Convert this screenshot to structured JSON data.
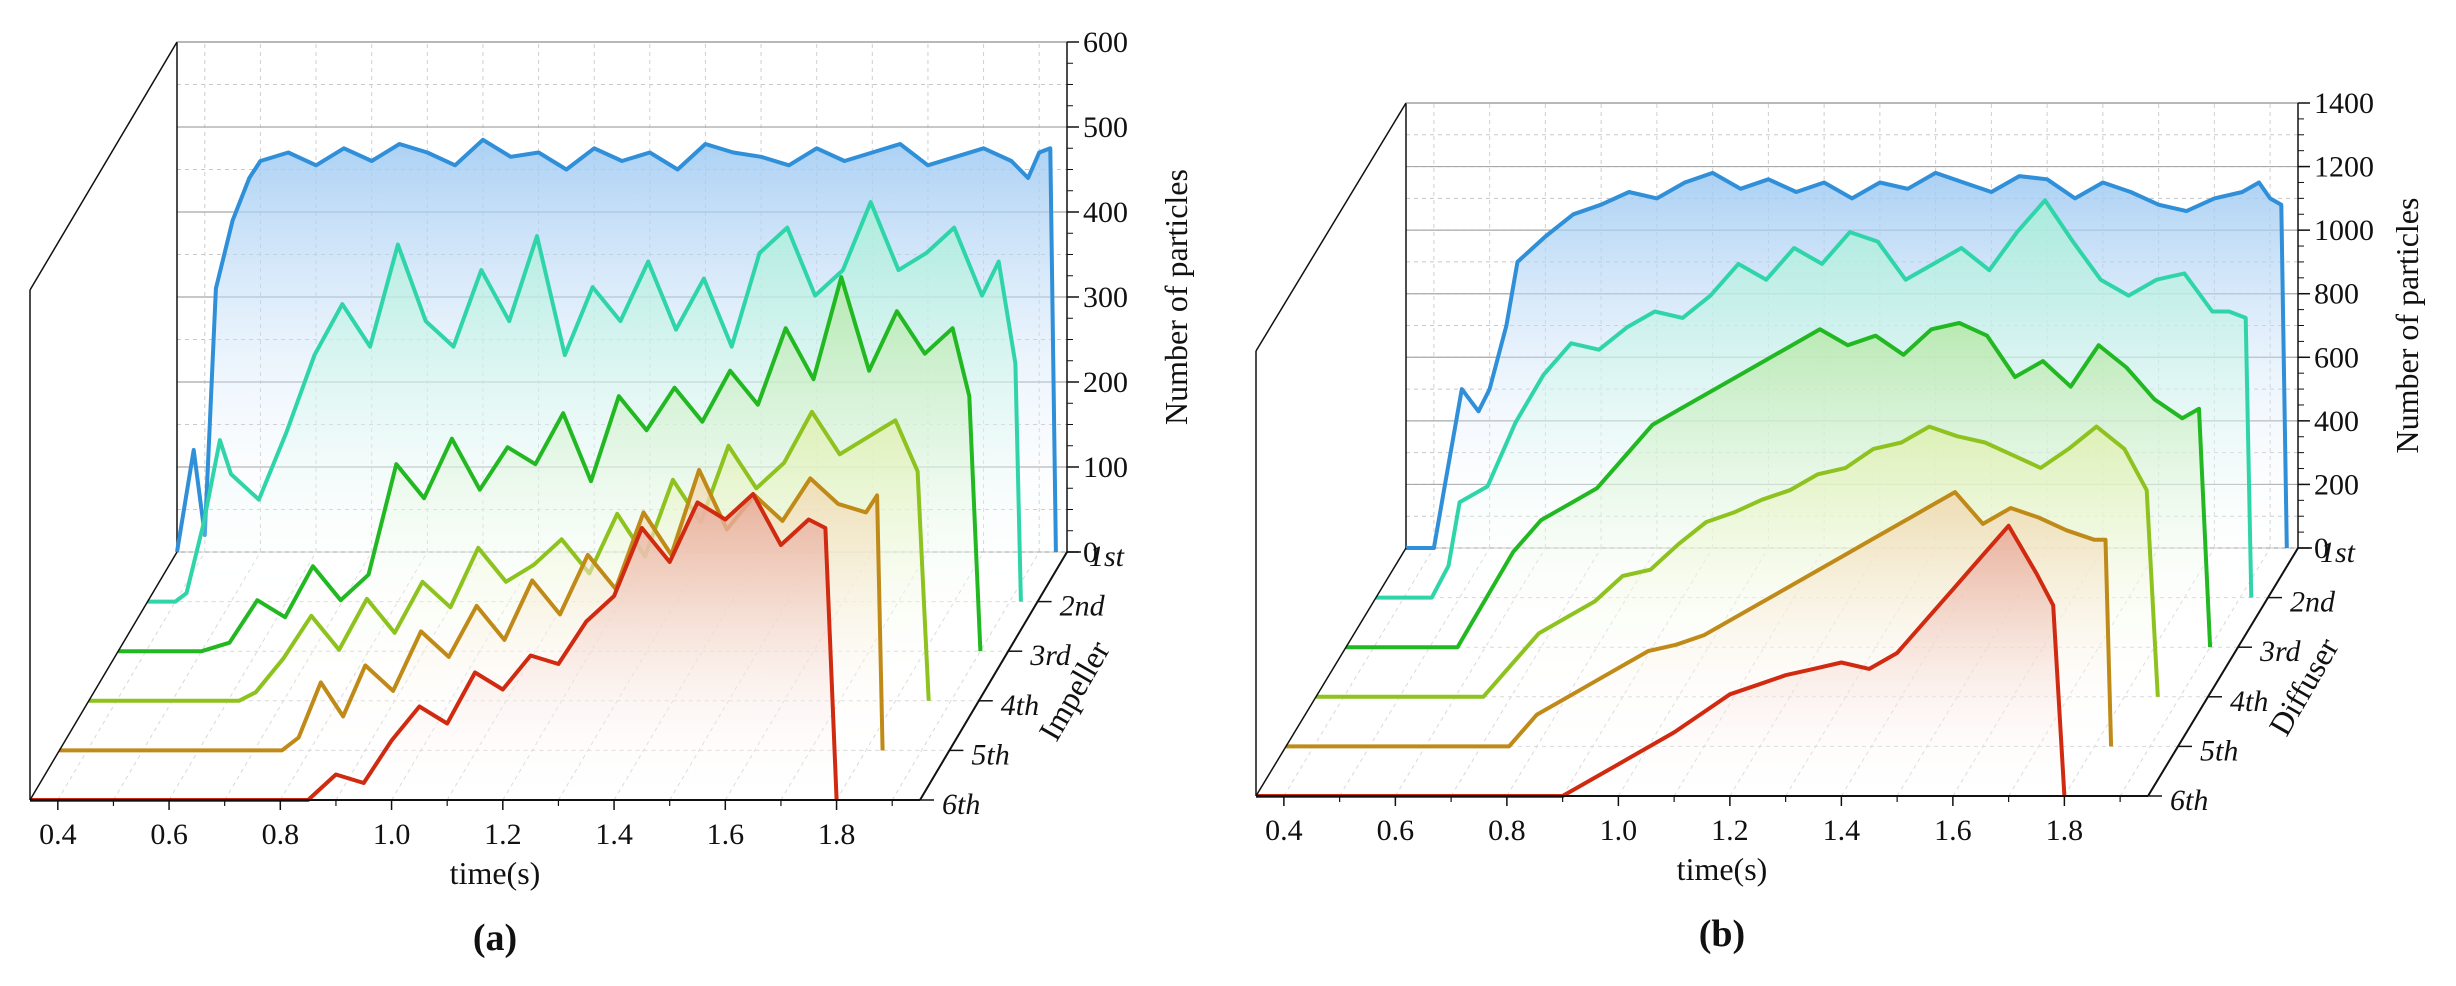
{
  "figure": {
    "panels": [
      {
        "id": "a",
        "caption": "(a)"
      },
      {
        "id": "b",
        "caption": "(b)"
      }
    ]
  },
  "chart_data": [
    {
      "type": "line",
      "style": "3d-waterfall",
      "panel": "(a)",
      "xlabel": "time(s)",
      "ylabel": "Number of particles",
      "depth_label": "Impeller",
      "xlim": [
        0.35,
        1.95
      ],
      "ylim": [
        0,
        600
      ],
      "xticks": [
        0.4,
        0.6,
        0.8,
        1.0,
        1.2,
        1.4,
        1.6,
        1.8
      ],
      "xtick_labels": [
        "0.4",
        "0.6",
        "0.8",
        "1.0",
        "1.2",
        "1.4",
        "1.6",
        "1.8"
      ],
      "yticks": [
        0,
        100,
        200,
        300,
        400,
        500,
        600
      ],
      "ytick_labels": [
        "0",
        "100",
        "200",
        "300",
        "400",
        "500",
        "600"
      ],
      "depth_categories": [
        "1st",
        "2nd",
        "3rd",
        "4th",
        "5th",
        "6th"
      ],
      "series": [
        {
          "name": "1st",
          "color": "#2f8fd8",
          "fill": "#9cc8f2",
          "x": [
            0.35,
            0.38,
            0.4,
            0.42,
            0.45,
            0.48,
            0.5,
            0.55,
            0.6,
            0.65,
            0.7,
            0.75,
            0.8,
            0.85,
            0.9,
            0.95,
            1.0,
            1.05,
            1.1,
            1.15,
            1.2,
            1.25,
            1.3,
            1.35,
            1.4,
            1.45,
            1.5,
            1.55,
            1.6,
            1.65,
            1.7,
            1.75,
            1.8,
            1.85,
            1.88,
            1.9,
            1.92,
            1.93
          ],
          "values": [
            0,
            120,
            20,
            310,
            390,
            440,
            460,
            470,
            455,
            475,
            460,
            480,
            470,
            455,
            485,
            465,
            470,
            450,
            475,
            460,
            470,
            450,
            480,
            470,
            465,
            455,
            475,
            460,
            470,
            480,
            455,
            465,
            475,
            460,
            440,
            470,
            475,
            0
          ]
        },
        {
          "name": "2nd",
          "color": "#2fd5a8",
          "fill": "#a8efd8",
          "x": [
            0.35,
            0.4,
            0.42,
            0.45,
            0.48,
            0.5,
            0.55,
            0.6,
            0.65,
            0.7,
            0.75,
            0.8,
            0.85,
            0.9,
            0.95,
            1.0,
            1.05,
            1.1,
            1.15,
            1.2,
            1.25,
            1.3,
            1.35,
            1.4,
            1.45,
            1.5,
            1.55,
            1.6,
            1.65,
            1.7,
            1.75,
            1.8,
            1.85,
            1.88,
            1.91,
            1.92
          ],
          "values": [
            0,
            0,
            10,
            90,
            190,
            150,
            120,
            200,
            290,
            350,
            300,
            420,
            330,
            300,
            390,
            330,
            430,
            290,
            370,
            330,
            400,
            320,
            380,
            300,
            410,
            440,
            360,
            390,
            470,
            390,
            410,
            440,
            360,
            400,
            280,
            0
          ]
        },
        {
          "name": "3rd",
          "color": "#22b822",
          "fill": "#b6e8a8",
          "x": [
            0.35,
            0.5,
            0.55,
            0.6,
            0.65,
            0.7,
            0.75,
            0.8,
            0.85,
            0.9,
            0.95,
            1.0,
            1.05,
            1.1,
            1.15,
            1.2,
            1.25,
            1.3,
            1.35,
            1.4,
            1.45,
            1.5,
            1.55,
            1.6,
            1.65,
            1.7,
            1.75,
            1.8,
            1.85,
            1.88,
            1.9
          ],
          "values": [
            0,
            0,
            10,
            60,
            40,
            100,
            60,
            90,
            220,
            180,
            250,
            190,
            240,
            220,
            280,
            200,
            300,
            260,
            310,
            270,
            330,
            290,
            380,
            320,
            440,
            330,
            400,
            350,
            380,
            300,
            0
          ]
        },
        {
          "name": "4th",
          "color": "#8ec21f",
          "fill": "#dff0b0",
          "x": [
            0.35,
            0.62,
            0.65,
            0.7,
            0.75,
            0.8,
            0.85,
            0.9,
            0.95,
            1.0,
            1.05,
            1.1,
            1.15,
            1.2,
            1.25,
            1.3,
            1.35,
            1.4,
            1.45,
            1.5,
            1.55,
            1.6,
            1.65,
            1.7,
            1.75,
            1.8,
            1.84,
            1.86
          ],
          "values": [
            0,
            0,
            10,
            50,
            100,
            60,
            120,
            80,
            140,
            110,
            180,
            140,
            160,
            190,
            150,
            220,
            170,
            260,
            210,
            300,
            250,
            280,
            340,
            290,
            310,
            330,
            270,
            0
          ]
        },
        {
          "name": "5th",
          "color": "#c08a18",
          "fill": "#f0d8b0",
          "x": [
            0.35,
            0.75,
            0.78,
            0.82,
            0.86,
            0.9,
            0.95,
            1.0,
            1.05,
            1.1,
            1.15,
            1.2,
            1.25,
            1.3,
            1.35,
            1.4,
            1.45,
            1.5,
            1.55,
            1.6,
            1.65,
            1.7,
            1.75,
            1.8,
            1.82,
            1.83
          ],
          "values": [
            0,
            0,
            15,
            80,
            40,
            100,
            70,
            140,
            110,
            170,
            130,
            200,
            160,
            230,
            190,
            280,
            230,
            330,
            260,
            300,
            270,
            320,
            290,
            280,
            300,
            0
          ]
        },
        {
          "name": "6th",
          "color": "#d02a10",
          "fill": "#e8a898",
          "x": [
            0.35,
            0.85,
            0.9,
            0.95,
            1.0,
            1.05,
            1.1,
            1.15,
            1.2,
            1.25,
            1.3,
            1.35,
            1.4,
            1.45,
            1.5,
            1.55,
            1.6,
            1.65,
            1.7,
            1.75,
            1.78,
            1.8
          ],
          "values": [
            0,
            0,
            30,
            20,
            70,
            110,
            90,
            150,
            130,
            170,
            160,
            210,
            240,
            320,
            280,
            350,
            330,
            360,
            300,
            330,
            320,
            0
          ]
        }
      ]
    },
    {
      "type": "line",
      "style": "3d-waterfall",
      "panel": "(b)",
      "xlabel": "time(s)",
      "ylabel": "Number of particles",
      "depth_label": "Diffuser",
      "xlim": [
        0.35,
        1.95
      ],
      "ylim": [
        0,
        1400
      ],
      "xticks": [
        0.4,
        0.6,
        0.8,
        1.0,
        1.2,
        1.4,
        1.6,
        1.8
      ],
      "xtick_labels": [
        "0.4",
        "0.6",
        "0.8",
        "1.0",
        "1.2",
        "1.4",
        "1.6",
        "1.8"
      ],
      "yticks": [
        0,
        200,
        400,
        600,
        800,
        1000,
        1200,
        1400
      ],
      "ytick_labels": [
        "0",
        "200",
        "400",
        "600",
        "800",
        "1000",
        "1200",
        "1400"
      ],
      "depth_categories": [
        "1st",
        "2nd",
        "3rd",
        "4th",
        "5th",
        "6th"
      ],
      "series": [
        {
          "name": "1st",
          "color": "#2f8fd8",
          "fill": "#9cc8f2",
          "x": [
            0.35,
            0.4,
            0.42,
            0.45,
            0.48,
            0.5,
            0.53,
            0.55,
            0.6,
            0.65,
            0.7,
            0.75,
            0.8,
            0.85,
            0.9,
            0.95,
            1.0,
            1.05,
            1.1,
            1.15,
            1.2,
            1.25,
            1.3,
            1.35,
            1.4,
            1.45,
            1.5,
            1.55,
            1.6,
            1.65,
            1.7,
            1.75,
            1.8,
            1.85,
            1.88,
            1.9,
            1.92,
            1.93
          ],
          "values": [
            0,
            0,
            200,
            500,
            430,
            500,
            700,
            900,
            980,
            1050,
            1080,
            1120,
            1100,
            1150,
            1180,
            1130,
            1160,
            1120,
            1150,
            1100,
            1150,
            1130,
            1180,
            1150,
            1120,
            1170,
            1160,
            1100,
            1150,
            1120,
            1080,
            1060,
            1100,
            1120,
            1150,
            1100,
            1080,
            0
          ]
        },
        {
          "name": "2nd",
          "color": "#2fd5a8",
          "fill": "#a8efd8",
          "x": [
            0.35,
            0.45,
            0.48,
            0.5,
            0.55,
            0.6,
            0.65,
            0.7,
            0.75,
            0.8,
            0.85,
            0.9,
            0.95,
            1.0,
            1.05,
            1.1,
            1.15,
            1.2,
            1.25,
            1.3,
            1.35,
            1.4,
            1.45,
            1.5,
            1.55,
            1.6,
            1.65,
            1.7,
            1.75,
            1.8,
            1.85,
            1.88,
            1.91,
            1.92
          ],
          "values": [
            0,
            0,
            100,
            300,
            350,
            550,
            700,
            800,
            780,
            850,
            900,
            880,
            950,
            1050,
            1000,
            1100,
            1050,
            1150,
            1120,
            1000,
            1050,
            1100,
            1030,
            1150,
            1250,
            1120,
            1000,
            950,
            1000,
            1020,
            900,
            900,
            880,
            0
          ]
        },
        {
          "name": "3rd",
          "color": "#22b822",
          "fill": "#b6e8a8",
          "x": [
            0.35,
            0.55,
            0.6,
            0.65,
            0.7,
            0.75,
            0.8,
            0.85,
            0.9,
            0.95,
            1.0,
            1.05,
            1.1,
            1.15,
            1.2,
            1.25,
            1.3,
            1.35,
            1.4,
            1.45,
            1.5,
            1.55,
            1.6,
            1.65,
            1.7,
            1.75,
            1.8,
            1.85,
            1.88,
            1.9
          ],
          "values": [
            0,
            0,
            150,
            300,
            400,
            450,
            500,
            600,
            700,
            750,
            800,
            850,
            900,
            950,
            1000,
            950,
            980,
            920,
            1000,
            1020,
            980,
            850,
            900,
            820,
            950,
            880,
            780,
            720,
            750,
            0
          ]
        },
        {
          "name": "4th",
          "color": "#8ec21f",
          "fill": "#dff0b0",
          "x": [
            0.35,
            0.65,
            0.7,
            0.75,
            0.8,
            0.85,
            0.9,
            0.95,
            1.0,
            1.05,
            1.1,
            1.15,
            1.2,
            1.25,
            1.3,
            1.35,
            1.4,
            1.45,
            1.5,
            1.55,
            1.6,
            1.65,
            1.7,
            1.75,
            1.8,
            1.84,
            1.86
          ],
          "values": [
            0,
            0,
            100,
            200,
            250,
            300,
            380,
            400,
            480,
            550,
            580,
            620,
            650,
            700,
            720,
            780,
            800,
            850,
            820,
            800,
            760,
            720,
            780,
            850,
            780,
            650,
            0
          ]
        },
        {
          "name": "5th",
          "color": "#c08a18",
          "fill": "#f0d8b0",
          "x": [
            0.35,
            0.75,
            0.8,
            0.85,
            0.9,
            0.95,
            1.0,
            1.05,
            1.1,
            1.15,
            1.2,
            1.25,
            1.3,
            1.35,
            1.4,
            1.45,
            1.5,
            1.55,
            1.6,
            1.65,
            1.7,
            1.75,
            1.8,
            1.82,
            1.83
          ],
          "values": [
            0,
            0,
            100,
            150,
            200,
            250,
            300,
            320,
            350,
            400,
            450,
            500,
            550,
            600,
            650,
            700,
            750,
            800,
            700,
            750,
            720,
            680,
            650,
            650,
            0
          ]
        },
        {
          "name": "6th",
          "color": "#d02a10",
          "fill": "#e8a898",
          "x": [
            0.35,
            0.9,
            0.95,
            1.0,
            1.05,
            1.1,
            1.15,
            1.2,
            1.25,
            1.3,
            1.35,
            1.4,
            1.45,
            1.5,
            1.55,
            1.6,
            1.65,
            1.7,
            1.75,
            1.78,
            1.8
          ],
          "values": [
            0,
            0,
            50,
            100,
            150,
            200,
            260,
            320,
            350,
            380,
            400,
            420,
            400,
            450,
            550,
            650,
            750,
            850,
            700,
            600,
            0
          ]
        }
      ]
    }
  ]
}
